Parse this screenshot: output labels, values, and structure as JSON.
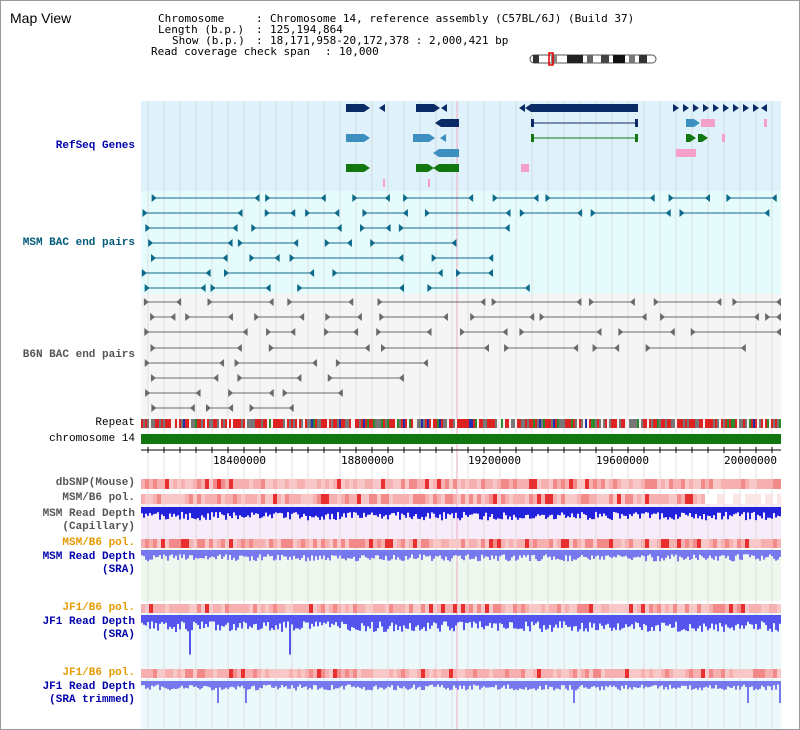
{
  "window": {
    "title": "Map View"
  },
  "header": {
    "chromosome_label": "Chromosome",
    "chromosome_value": "Chromosome 14, reference assembly (C57BL/6J) (Build 37)",
    "length_label": "Length (b.p.)",
    "length_value": "125,194,864",
    "show_label": "Show (b.p.)",
    "show_value": "18,171,958-20,172,378 : 2,000,421 bp",
    "coverage_label": "Read coverage check span",
    "coverage_value": "10,000"
  },
  "tracks": {
    "refseq": "RefSeq Genes",
    "msm_bac": "MSM BAC end pairs",
    "b6n_bac": "B6N BAC end pairs",
    "repeat": "Repeat",
    "chromosome": "chromosome 14",
    "dbsnp": "dbSNP(Mouse)",
    "msm_b6_pol_1": "MSM/B6 pol.",
    "msm_depth_cap_1": "MSM Read Depth",
    "msm_depth_cap_2": "(Capillary)",
    "msm_b6_pol_2": "MSM/B6 pol.",
    "msm_depth_sra_1": "MSM Read Depth",
    "msm_depth_sra_2": "(SRA)",
    "jf1_b6_pol_1": "JF1/B6 pol.",
    "jf1_depth_sra_1": "JF1 Read Depth",
    "jf1_depth_sra_2": "(SRA)",
    "jf1_b6_pol_2": "JF1/B6 pol.",
    "jf1_depth_trim_1": "JF1 Read Depth",
    "jf1_depth_trim_2": "(SRA trimmed)"
  },
  "axis": {
    "ticks": [
      "18400000",
      "18800000",
      "19200000",
      "19600000",
      "20000000"
    ]
  },
  "colors": {
    "refseq_bg": "#dff1fb",
    "msm_bac_bg": "#e6fbfb",
    "b6n_bg": "#f5f5f5",
    "gene_navy": "#0b2b66",
    "gene_blue": "#3d8fbf",
    "gene_green": "#117711",
    "gene_pink": "#f4a0c8",
    "msm_bac": "#0e6a8a",
    "b6n_bac": "#6a6a6a",
    "chromosome": "#117711",
    "pol": "#f08080",
    "depth_blue": "#2222dd",
    "depth_light": "#7777ee",
    "jf1_label": "#e69a00",
    "msm_label": "#0000aa"
  }
}
